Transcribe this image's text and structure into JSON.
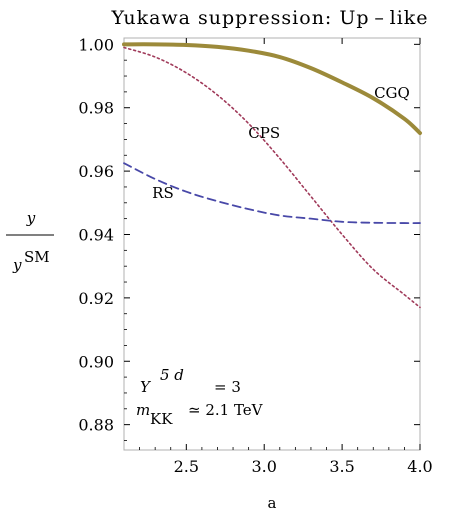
{
  "chart_data": {
    "type": "line",
    "title": "Yukawa suppression: Up – like",
    "xlabel": "a",
    "ylabel": {
      "numerator": "y",
      "denominator_main": "y",
      "denominator_sup": "SM"
    },
    "xlim": [
      2.1,
      4.0
    ],
    "ylim": [
      0.872,
      1.002
    ],
    "xticks": [
      "2.5",
      "3.0",
      "3.5",
      "4.0"
    ],
    "xtick_values": [
      2.5,
      3.0,
      3.5,
      4.0
    ],
    "yticks": [
      "0.88",
      "0.90",
      "0.92",
      "0.94",
      "0.96",
      "0.98",
      "1.00"
    ],
    "ytick_values": [
      0.88,
      0.9,
      0.92,
      0.94,
      0.96,
      0.98,
      1.0
    ],
    "grid": false,
    "series": [
      {
        "name": "CGQ",
        "style": "solid",
        "color": "#9c8a3a",
        "x": [
          2.1,
          2.3,
          2.5,
          2.7,
          2.9,
          3.1,
          3.3,
          3.5,
          3.7,
          3.9,
          4.0
        ],
        "y": [
          1.0,
          1.0,
          0.9998,
          0.9992,
          0.998,
          0.996,
          0.9925,
          0.988,
          0.983,
          0.9765,
          0.972
        ]
      },
      {
        "name": "CPS",
        "style": "dotted",
        "color": "#a03a5a",
        "x": [
          2.1,
          2.3,
          2.5,
          2.7,
          2.9,
          3.1,
          3.3,
          3.5,
          3.7,
          3.9,
          4.0
        ],
        "y": [
          0.999,
          0.996,
          0.991,
          0.984,
          0.975,
          0.964,
          0.952,
          0.94,
          0.929,
          0.921,
          0.917
        ]
      },
      {
        "name": "RS",
        "style": "dashed",
        "color": "#4848a8",
        "x": [
          2.1,
          2.3,
          2.5,
          2.7,
          2.9,
          3.1,
          3.3,
          3.5,
          3.7,
          3.9,
          4.0
        ],
        "y": [
          0.9625,
          0.9575,
          0.9535,
          0.9505,
          0.948,
          0.946,
          0.945,
          0.944,
          0.9437,
          0.9436,
          0.9436
        ]
      }
    ],
    "curve_labels": [
      {
        "text": "CGQ",
        "x": 3.82,
        "y": 0.983
      },
      {
        "text": "CPS",
        "x": 3.0,
        "y": 0.9705
      },
      {
        "text": "RS",
        "x": 2.35,
        "y": 0.9515
      }
    ],
    "annotations": {
      "line1_main": "Y",
      "line1_sup": "5  d",
      "line1_rest": "= 3",
      "line2_main": "m",
      "line2_sub": "KK",
      "line2_rest": "≃ 2.1 TeV"
    }
  }
}
